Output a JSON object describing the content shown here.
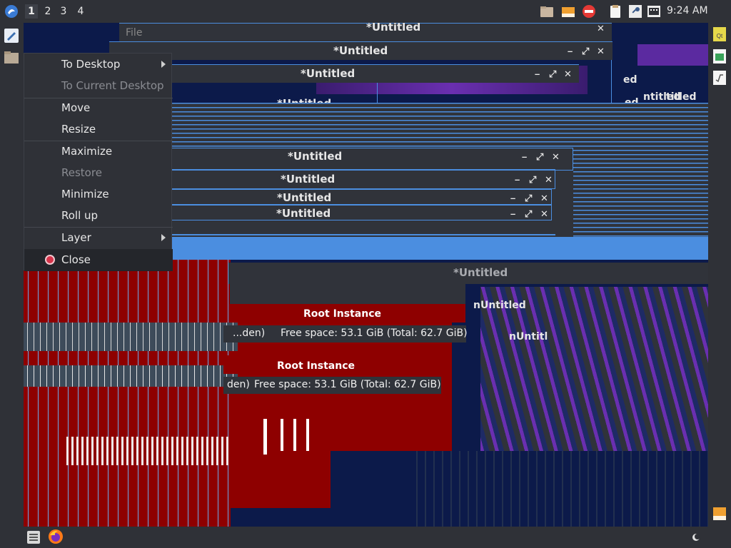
{
  "top_panel": {
    "workspaces": [
      "1",
      "2",
      "3",
      "4"
    ],
    "active_workspace": "1",
    "clock": "9:24 AM",
    "tray_icons": [
      "folder-icon",
      "archive-icon",
      "no-entry-icon",
      "clipboard-icon",
      "key-icon",
      "keyboard-icon"
    ]
  },
  "left_dock": {
    "icons": [
      "editor-icon",
      "folder-icon"
    ]
  },
  "right_dock": {
    "icons": [
      "qt-icon",
      "spreadsheet-icon",
      "formula-icon",
      "archive-icon"
    ]
  },
  "bottom_panel": {
    "icons": [
      "app-menu-icon",
      "firefox-icon",
      "night-mode-icon"
    ]
  },
  "context_menu": {
    "items": [
      {
        "label": "To Desktop",
        "submenu": true,
        "enabled": true
      },
      {
        "label": "To Current Desktop",
        "submenu": false,
        "enabled": false
      },
      {
        "label": "Move",
        "submenu": false,
        "enabled": true
      },
      {
        "label": "Resize",
        "submenu": false,
        "enabled": true
      },
      {
        "label": "Maximize",
        "submenu": false,
        "enabled": true
      },
      {
        "label": "Restore",
        "submenu": false,
        "enabled": false
      },
      {
        "label": "Minimize",
        "submenu": false,
        "enabled": true
      },
      {
        "label": "Roll up",
        "submenu": false,
        "enabled": true
      },
      {
        "label": "Layer",
        "submenu": true,
        "enabled": true
      },
      {
        "label": "Close",
        "submenu": false,
        "enabled": true
      }
    ]
  },
  "windows": {
    "title": "*Untitled",
    "menu_file": "File",
    "root_instance": "Root Instance",
    "free_space": "Free space: 53.1 GiB (Total: 62.7 GiB)",
    "hidden_fragment": "...den)",
    "hidden_fragment2": "den)",
    "title_fragment": "nUntitled",
    "title_fragment2": "ed",
    "title_fragment3": "ntitled",
    "title_fragment4": "titled",
    "title_fragment5": "nUntitl",
    "title_fragment6": "ed"
  },
  "colors": {
    "accent": "#4b8ee0",
    "panel": "#2f3137",
    "danger_red": "#8e0000",
    "navy": "#0c1a4a",
    "purple": "#6a2fb0"
  }
}
